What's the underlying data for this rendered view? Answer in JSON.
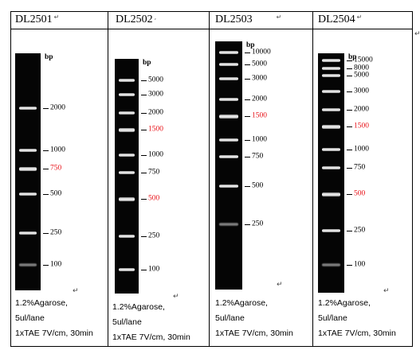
{
  "columns": [
    {
      "id": "DL2501",
      "title": "DL2501",
      "bands": [
        2000,
        1000,
        750,
        500,
        250,
        100
      ],
      "labels": [
        {
          "text": "2000",
          "red": false
        },
        {
          "text": "1000",
          "red": false
        },
        {
          "text": "750",
          "red": true
        },
        {
          "text": "500",
          "red": false
        },
        {
          "text": "250",
          "red": false
        },
        {
          "text": "100",
          "red": false
        }
      ]
    },
    {
      "id": "DL2502",
      "title": "DL2502",
      "bands": [
        5000,
        3000,
        2000,
        1500,
        1000,
        750,
        500,
        250,
        100
      ],
      "labels": [
        {
          "text": "5000",
          "red": false
        },
        {
          "text": "3000",
          "red": false
        },
        {
          "text": "2000",
          "red": false
        },
        {
          "text": "1500",
          "red": true
        },
        {
          "text": "1000",
          "red": false
        },
        {
          "text": "750",
          "red": false
        },
        {
          "text": "500",
          "red": true
        },
        {
          "text": "250",
          "red": false
        },
        {
          "text": "100",
          "red": false
        }
      ]
    },
    {
      "id": "DL2503",
      "title": "DL2503",
      "bands": [
        10000,
        5000,
        3000,
        2000,
        1500,
        1000,
        750,
        500,
        250
      ],
      "labels": [
        {
          "text": "10000",
          "red": false
        },
        {
          "text": "5000",
          "red": false
        },
        {
          "text": "3000",
          "red": false
        },
        {
          "text": "2000",
          "red": false
        },
        {
          "text": "1500",
          "red": true
        },
        {
          "text": "1000",
          "red": false
        },
        {
          "text": "750",
          "red": false
        },
        {
          "text": "500",
          "red": false
        },
        {
          "text": "250",
          "red": false
        }
      ]
    },
    {
      "id": "DL2504",
      "title": "DL2504",
      "bands": [
        15000,
        8000,
        5000,
        3000,
        2000,
        1500,
        1000,
        750,
        500,
        250,
        100
      ],
      "labels": [
        {
          "text": "15000",
          "red": false
        },
        {
          "text": "8000",
          "red": false
        },
        {
          "text": "5000",
          "red": false
        },
        {
          "text": "3000",
          "red": false
        },
        {
          "text": "2000",
          "red": false
        },
        {
          "text": "1500",
          "red": true
        },
        {
          "text": "1000",
          "red": false
        },
        {
          "text": "750",
          "red": false
        },
        {
          "text": "500",
          "red": true
        },
        {
          "text": "250",
          "red": false
        },
        {
          "text": "100",
          "red": false
        }
      ]
    }
  ],
  "unit": "bp",
  "conditions": {
    "line1": "1.2%Agarose,",
    "line2": "5ul/lane",
    "line3": "1xTAE 7V/cm, 30min"
  },
  "colors": {
    "highlight": "#e8141a",
    "gel": "#050505",
    "band": "#ffffff"
  }
}
